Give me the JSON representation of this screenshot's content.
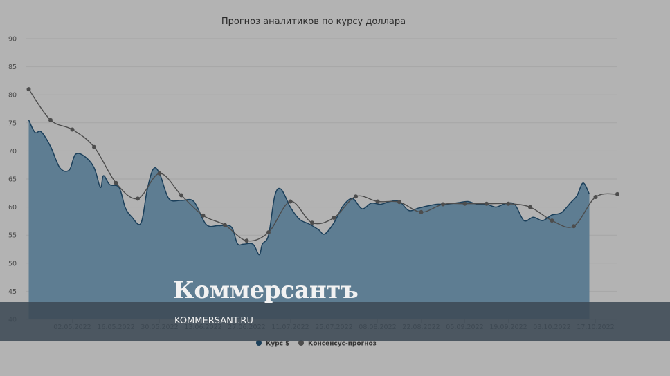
{
  "chart_data": {
    "type": "area",
    "title": "Прогноз аналитиков по курсу доллара",
    "ylim": [
      40,
      90
    ],
    "yticks": [
      40,
      45,
      50,
      55,
      60,
      65,
      70,
      75,
      80,
      85,
      90
    ],
    "xlim": [
      "2022-04-17",
      "2022-10-24"
    ],
    "xticks": [
      "02.05.2022",
      "16.05.2022",
      "30.05.2022",
      "13.06.2022",
      "27.06.2022",
      "11.07.2022",
      "25.07.2022",
      "08.08.2022",
      "22.08.2022",
      "05.09.2022",
      "19.09.2022",
      "03.10.2022",
      "17.10.2022"
    ],
    "grid": true,
    "legend_position": "bottom",
    "series": [
      {
        "name": "Курс $",
        "color": "#5a7a90",
        "line_color": "#1b3f5a",
        "x": [
          "2022-04-18",
          "2022-04-20",
          "2022-04-22",
          "2022-04-25",
          "2022-04-28",
          "2022-05-01",
          "2022-05-03",
          "2022-05-06",
          "2022-05-09",
          "2022-05-11",
          "2022-05-12",
          "2022-05-14",
          "2022-05-17",
          "2022-05-19",
          "2022-05-21",
          "2022-05-24",
          "2022-05-26",
          "2022-05-28",
          "2022-05-30",
          "2022-06-02",
          "2022-06-06",
          "2022-06-10",
          "2022-06-14",
          "2022-06-18",
          "2022-06-22",
          "2022-06-24",
          "2022-06-26",
          "2022-06-29",
          "2022-07-01",
          "2022-07-02",
          "2022-07-04",
          "2022-07-06",
          "2022-07-08",
          "2022-07-11",
          "2022-07-14",
          "2022-07-17",
          "2022-07-20",
          "2022-07-22",
          "2022-07-25",
          "2022-07-28",
          "2022-07-31",
          "2022-08-03",
          "2022-08-06",
          "2022-08-09",
          "2022-08-12",
          "2022-08-15",
          "2022-08-18",
          "2022-08-21",
          "2022-08-24",
          "2022-08-27",
          "2022-08-30",
          "2022-09-03",
          "2022-09-06",
          "2022-09-09",
          "2022-09-12",
          "2022-09-15",
          "2022-09-18",
          "2022-09-21",
          "2022-09-24",
          "2022-09-27",
          "2022-09-30",
          "2022-10-03",
          "2022-10-06",
          "2022-10-09",
          "2022-10-11",
          "2022-10-13",
          "2022-10-15"
        ],
        "values": [
          75.5,
          73.3,
          73.4,
          70.8,
          67.0,
          66.6,
          69.4,
          69.0,
          67.0,
          63.5,
          65.6,
          64.0,
          63.5,
          59.9,
          58.3,
          57.1,
          63.0,
          66.8,
          66.0,
          61.5,
          61.2,
          61.0,
          56.9,
          56.7,
          56.5,
          53.5,
          53.4,
          53.4,
          51.5,
          53.4,
          55.0,
          62.0,
          63.2,
          60.0,
          57.8,
          57.0,
          56.0,
          55.2,
          57.2,
          60.3,
          61.5,
          59.7,
          60.7,
          60.5,
          61.0,
          61.0,
          59.4,
          59.8,
          60.2,
          60.5,
          60.5,
          60.8,
          61.0,
          60.5,
          60.5,
          60.0,
          60.6,
          60.5,
          57.6,
          58.2,
          57.6,
          58.6,
          59.0,
          60.8,
          62.0,
          64.3,
          62.3
        ]
      },
      {
        "name": "Консенсус-прогноз",
        "color": "#4d4d4d",
        "x": [
          "2022-04-18",
          "2022-04-25",
          "2022-05-02",
          "2022-05-09",
          "2022-05-16",
          "2022-05-23",
          "2022-05-30",
          "2022-06-06",
          "2022-06-13",
          "2022-06-20",
          "2022-06-27",
          "2022-07-04",
          "2022-07-11",
          "2022-07-18",
          "2022-07-25",
          "2022-08-01",
          "2022-08-08",
          "2022-08-15",
          "2022-08-22",
          "2022-08-29",
          "2022-09-05",
          "2022-09-12",
          "2022-09-19",
          "2022-09-26",
          "2022-10-03",
          "2022-10-10",
          "2022-10-17",
          "2022-10-24"
        ],
        "values": [
          81.0,
          75.5,
          73.8,
          70.7,
          64.3,
          61.5,
          66.0,
          62.1,
          58.5,
          56.8,
          54.0,
          55.5,
          61.0,
          57.2,
          58.1,
          61.9,
          61.0,
          60.9,
          59.1,
          60.5,
          60.6,
          60.6,
          60.6,
          60.0,
          57.6,
          56.6,
          61.8,
          62.3
        ]
      }
    ]
  },
  "watermark": {
    "brand": "Коммерсантъ",
    "site": "KOMMERSANT.RU"
  }
}
